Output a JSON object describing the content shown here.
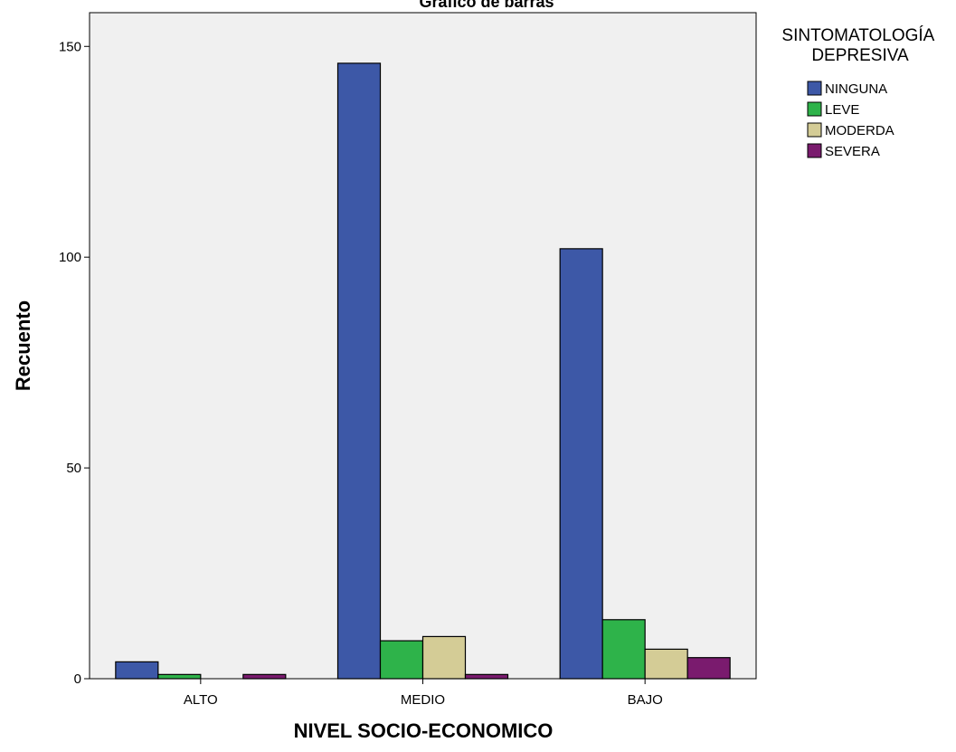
{
  "chart_data": {
    "type": "bar",
    "title": "Gráfico de barras",
    "xlabel": "NIVEL SOCIO-ECONOMICO",
    "ylabel": "Recuento",
    "categories": [
      "ALTO",
      "MEDIO",
      "BAJO"
    ],
    "ylim": [
      0,
      158
    ],
    "yticks": [
      0,
      50,
      100,
      150
    ],
    "grid": false,
    "legend_position": "right",
    "legend_title": "SINTOMATOLOGÍA DEPRESIVA",
    "series": [
      {
        "name": "NINGUNA",
        "color": "#3d58a7",
        "values": [
          4,
          146,
          102
        ]
      },
      {
        "name": "LEVE",
        "color": "#2eb34a",
        "values": [
          1,
          9,
          14
        ]
      },
      {
        "name": "MODERDA",
        "color": "#d4cc96",
        "values": [
          0,
          10,
          7
        ]
      },
      {
        "name": "SEVERA",
        "color": "#7a1b6e",
        "values": [
          1,
          1,
          5
        ]
      }
    ],
    "plot_background": "#f0f0f0"
  }
}
